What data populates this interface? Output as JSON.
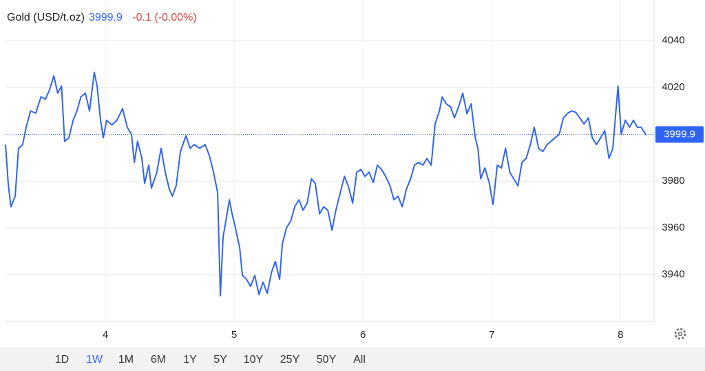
{
  "chart_data": {
    "type": "line",
    "title": "Gold (USD/t.oz)",
    "price": 3999.9,
    "change": "-0.1 (-0.00%)",
    "xlim": [
      3.225,
      8.26
    ],
    "xticks": [
      4,
      5,
      6,
      7,
      8
    ],
    "ylim": [
      3920,
      4057.4
    ],
    "yticks": [
      3940,
      3960,
      3980,
      4020,
      4040
    ],
    "grid": true,
    "x": [
      3.225,
      3.246,
      3.267,
      3.3,
      3.326,
      3.358,
      3.385,
      3.42,
      3.46,
      3.5,
      3.535,
      3.567,
      3.6,
      3.63,
      3.66,
      3.684,
      3.717,
      3.75,
      3.78,
      3.81,
      3.845,
      3.877,
      3.914,
      3.936,
      3.963,
      3.984,
      4.01,
      4.05,
      4.09,
      4.134,
      4.17,
      4.203,
      4.225,
      4.25,
      4.283,
      4.305,
      4.337,
      4.358,
      4.4,
      4.433,
      4.465,
      4.497,
      4.52,
      4.55,
      4.583,
      4.626,
      4.658,
      4.69,
      4.733,
      4.775,
      4.807,
      4.84,
      4.872,
      4.893,
      4.914,
      4.936,
      4.963,
      4.984,
      5.01,
      5.043,
      5.064,
      5.096,
      5.128,
      5.16,
      5.193,
      5.225,
      5.257,
      5.29,
      5.32,
      5.353,
      5.374,
      5.406,
      5.44,
      5.47,
      5.503,
      5.535,
      5.567,
      5.6,
      5.63,
      5.663,
      5.695,
      5.727,
      5.76,
      5.79,
      5.824,
      5.856,
      5.888,
      5.92,
      5.952,
      5.984,
      6.016,
      6.048,
      6.08,
      6.112,
      6.144,
      6.176,
      6.21,
      6.24,
      6.273,
      6.305,
      6.337,
      6.37,
      6.4,
      6.433,
      6.465,
      6.497,
      6.53,
      6.56,
      6.594,
      6.615,
      6.647,
      6.68,
      6.71,
      6.743,
      6.775,
      6.807,
      6.84,
      6.872,
      6.893,
      6.914,
      6.947,
      6.98,
      7.01,
      7.043,
      7.075,
      7.107,
      7.14,
      7.17,
      7.203,
      7.235,
      7.267,
      7.3,
      7.33,
      7.364,
      7.396,
      7.43,
      7.46,
      7.492,
      7.524,
      7.556,
      7.59,
      7.62,
      7.652,
      7.684,
      7.716,
      7.75,
      7.78,
      7.813,
      7.845,
      7.877,
      7.91,
      7.94,
      7.98,
      8.005,
      8.037,
      8.07,
      8.1,
      8.13,
      8.16,
      8.198
    ],
    "series": [
      {
        "name": "Gold (USD/t.oz)",
        "color": "#2f63f5",
        "values": [
          3995.6,
          3979,
          3969,
          3973.5,
          3994,
          3995.6,
          4003,
          4010,
          4009,
          4016,
          4015,
          4019,
          4025,
          4017.6,
          4020.6,
          3997,
          3998.5,
          4006,
          4010,
          4016,
          4017.6,
          4010,
          4026.5,
          4020.6,
          4006,
          3998.5,
          4006,
          4004,
          4006,
          4011,
          4003,
          4000,
          3988,
          3997,
          3990,
          3979,
          3986.8,
          3977,
          3983.8,
          3994,
          3983.8,
          3976.5,
          3973.5,
          3978,
          3992.6,
          3999.4,
          3994,
          3995.6,
          3994,
          3995.6,
          3991,
          3983.8,
          3975,
          3931,
          3956,
          3963,
          3972,
          3966,
          3960,
          3951.5,
          3939.7,
          3938,
          3935,
          3939.7,
          3931.5,
          3936.8,
          3932,
          3941,
          3945.6,
          3938,
          3953,
          3960,
          3963,
          3969,
          3972,
          3967.6,
          3970.6,
          3981,
          3979,
          3966,
          3969,
          3967.6,
          3959,
          3967.6,
          3975,
          3982,
          3977.6,
          3970.6,
          3983.8,
          3985,
          3982,
          3983.8,
          3979.4,
          3986.8,
          3985,
          3982,
          3978,
          3972,
          3973.5,
          3969,
          3976.5,
          3981,
          3986.8,
          3988,
          3986.8,
          3989.7,
          3986.8,
          4004.4,
          4010,
          4016,
          4013,
          4011.8,
          4007,
          4011.8,
          4017.6,
          4008.8,
          4013,
          3998.5,
          3994,
          3981,
          3985.6,
          3979.4,
          3970,
          3986.8,
          3985.6,
          3994,
          3983.8,
          3981,
          3978,
          3988,
          3989.7,
          3995.6,
          4003,
          3994,
          3992.6,
          3995.6,
          3997,
          3998.5,
          4000,
          4007,
          4009,
          4010,
          4009.4,
          4007,
          4004.4,
          4007,
          3998.5,
          3995.6,
          3998.5,
          4001.5,
          3989.7,
          3994,
          4020.6,
          4000,
          4006,
          4003,
          4006,
          4003,
          4003,
          3999.7
        ]
      }
    ]
  },
  "ranges": [
    "1D",
    "1W",
    "1M",
    "6M",
    "1Y",
    "5Y",
    "10Y",
    "25Y",
    "50Y",
    "All"
  ],
  "selected_range": 1
}
